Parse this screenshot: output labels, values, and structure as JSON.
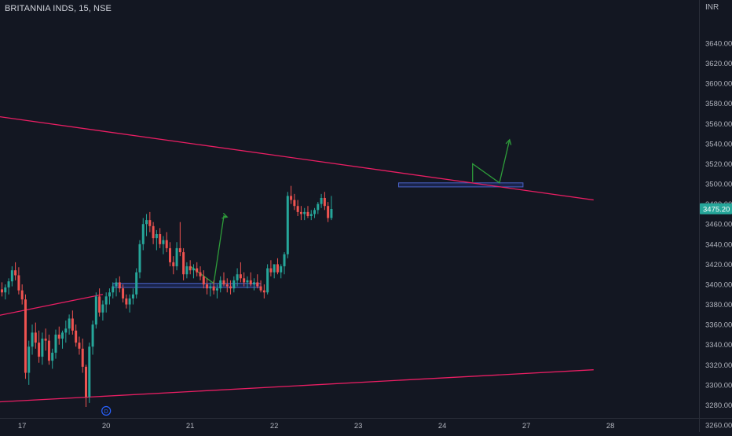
{
  "symbol": {
    "name": "BRITANNIA INDS",
    "interval": "15",
    "exchange": "NSE",
    "title": "BRITANNIA INDS, 15, NSE"
  },
  "currency": "INR",
  "last_price": "3475.20",
  "dividend_marker": "D",
  "colors": {
    "background": "#131722",
    "up": "#26a69a",
    "down": "#ef5350",
    "trendline": "#e91e63",
    "zone_fill": "#1e2a5a",
    "zone_border": "#4a63c8",
    "projection": "#2e9d3a",
    "axis_text": "#b2b5be",
    "price_badge": "#26a69a"
  },
  "chart_data": {
    "type": "candlestick",
    "ylim": [
      3253,
      3683
    ],
    "y_ticks": [
      3260,
      3280,
      3300,
      3320,
      3340,
      3360,
      3380,
      3400,
      3420,
      3440,
      3460,
      3480,
      3500,
      3520,
      3540,
      3560,
      3580,
      3600,
      3620,
      3640
    ],
    "x_ticks": [
      {
        "label": "17",
        "t": 6
      },
      {
        "label": "20",
        "t": 31
      },
      {
        "label": "21",
        "t": 56
      },
      {
        "label": "22",
        "t": 81
      },
      {
        "label": "23",
        "t": 106
      },
      {
        "label": "24",
        "t": 131
      },
      {
        "label": "27",
        "t": 156
      },
      {
        "label": "28",
        "t": 181
      }
    ],
    "candles": [
      [
        3395,
        3402,
        3388,
        3392
      ],
      [
        3392,
        3400,
        3385,
        3397
      ],
      [
        3397,
        3406,
        3390,
        3403
      ],
      [
        3403,
        3418,
        3398,
        3414
      ],
      [
        3414,
        3422,
        3404,
        3409
      ],
      [
        3409,
        3417,
        3390,
        3394
      ],
      [
        3394,
        3400,
        3380,
        3385
      ],
      [
        3385,
        3390,
        3306,
        3312
      ],
      [
        3312,
        3344,
        3300,
        3338
      ],
      [
        3338,
        3360,
        3330,
        3352
      ],
      [
        3352,
        3362,
        3336,
        3342
      ],
      [
        3342,
        3354,
        3322,
        3328
      ],
      [
        3328,
        3352,
        3320,
        3346
      ],
      [
        3346,
        3356,
        3334,
        3344
      ],
      [
        3344,
        3350,
        3320,
        3324
      ],
      [
        3324,
        3336,
        3316,
        3332
      ],
      [
        3332,
        3355,
        3326,
        3350
      ],
      [
        3350,
        3358,
        3340,
        3346
      ],
      [
        3346,
        3354,
        3336,
        3352
      ],
      [
        3352,
        3364,
        3342,
        3356
      ],
      [
        3356,
        3370,
        3350,
        3366
      ],
      [
        3366,
        3374,
        3350,
        3354
      ],
      [
        3354,
        3360,
        3338,
        3342
      ],
      [
        3342,
        3348,
        3330,
        3336
      ],
      [
        3336,
        3346,
        3312,
        3318
      ],
      [
        3318,
        3320,
        3278,
        3288
      ],
      [
        3288,
        3342,
        3282,
        3338
      ],
      [
        3338,
        3364,
        3330,
        3360
      ],
      [
        3360,
        3392,
        3356,
        3388
      ],
      [
        3388,
        3396,
        3368,
        3372
      ],
      [
        3372,
        3384,
        3364,
        3380
      ],
      [
        3380,
        3392,
        3372,
        3388
      ],
      [
        3388,
        3396,
        3380,
        3392
      ],
      [
        3392,
        3402,
        3386,
        3398
      ],
      [
        3398,
        3406,
        3388,
        3402
      ],
      [
        3402,
        3408,
        3392,
        3396
      ],
      [
        3396,
        3400,
        3382,
        3386
      ],
      [
        3386,
        3390,
        3376,
        3380
      ],
      [
        3380,
        3390,
        3372,
        3386
      ],
      [
        3386,
        3396,
        3380,
        3390
      ],
      [
        3390,
        3416,
        3386,
        3412
      ],
      [
        3412,
        3444,
        3406,
        3440
      ],
      [
        3440,
        3466,
        3434,
        3460
      ],
      [
        3460,
        3470,
        3448,
        3464
      ],
      [
        3464,
        3472,
        3452,
        3458
      ],
      [
        3458,
        3462,
        3440,
        3446
      ],
      [
        3446,
        3454,
        3434,
        3450
      ],
      [
        3450,
        3456,
        3436,
        3440
      ],
      [
        3440,
        3448,
        3430,
        3444
      ],
      [
        3444,
        3452,
        3432,
        3436
      ],
      [
        3436,
        3442,
        3418,
        3422
      ],
      [
        3422,
        3428,
        3410,
        3418
      ],
      [
        3418,
        3442,
        3414,
        3436
      ],
      [
        3436,
        3462,
        3428,
        3432
      ],
      [
        3432,
        3436,
        3404,
        3410
      ],
      [
        3410,
        3422,
        3406,
        3418
      ],
      [
        3418,
        3424,
        3410,
        3414
      ],
      [
        3414,
        3420,
        3406,
        3416
      ],
      [
        3416,
        3422,
        3408,
        3412
      ],
      [
        3412,
        3418,
        3404,
        3408
      ],
      [
        3408,
        3414,
        3396,
        3400
      ],
      [
        3400,
        3406,
        3390,
        3396
      ],
      [
        3396,
        3402,
        3388,
        3398
      ],
      [
        3398,
        3404,
        3390,
        3394
      ],
      [
        3394,
        3400,
        3386,
        3396
      ],
      [
        3396,
        3408,
        3392,
        3404
      ],
      [
        3404,
        3412,
        3398,
        3400
      ],
      [
        3400,
        3406,
        3392,
        3398
      ],
      [
        3398,
        3404,
        3390,
        3396
      ],
      [
        3396,
        3408,
        3392,
        3404
      ],
      [
        3404,
        3416,
        3398,
        3410
      ],
      [
        3410,
        3422,
        3402,
        3406
      ],
      [
        3406,
        3412,
        3398,
        3402
      ],
      [
        3402,
        3408,
        3396,
        3404
      ],
      [
        3404,
        3412,
        3398,
        3400
      ],
      [
        3400,
        3406,
        3394,
        3402
      ],
      [
        3402,
        3410,
        3396,
        3398
      ],
      [
        3398,
        3404,
        3392,
        3394
      ],
      [
        3394,
        3400,
        3386,
        3392
      ],
      [
        3392,
        3420,
        3390,
        3416
      ],
      [
        3416,
        3424,
        3408,
        3412
      ],
      [
        3412,
        3418,
        3406,
        3420
      ],
      [
        3420,
        3426,
        3410,
        3412
      ],
      [
        3412,
        3420,
        3406,
        3418
      ],
      [
        3418,
        3432,
        3410,
        3430
      ],
      [
        3430,
        3492,
        3426,
        3488
      ],
      [
        3488,
        3498,
        3480,
        3484
      ],
      [
        3484,
        3490,
        3474,
        3478
      ],
      [
        3478,
        3484,
        3468,
        3472
      ],
      [
        3472,
        3478,
        3464,
        3470
      ],
      [
        3470,
        3476,
        3464,
        3472
      ],
      [
        3472,
        3478,
        3466,
        3468
      ],
      [
        3468,
        3474,
        3464,
        3470
      ],
      [
        3470,
        3476,
        3466,
        3474
      ],
      [
        3474,
        3482,
        3470,
        3480
      ],
      [
        3480,
        3490,
        3476,
        3486
      ],
      [
        3486,
        3492,
        3474,
        3478
      ],
      [
        3478,
        3482,
        3462,
        3466
      ],
      [
        3466,
        3488,
        3464,
        3475
      ]
    ],
    "trendlines": [
      {
        "name": "upper-resistance",
        "points": [
          [
            -1,
            3567
          ],
          [
            176,
            3484
          ]
        ]
      },
      {
        "name": "lower-support",
        "points": [
          [
            -1,
            3283
          ],
          [
            176,
            3315
          ]
        ]
      },
      {
        "name": "short-support",
        "points": [
          [
            -1,
            3369
          ],
          [
            30,
            3390
          ]
        ]
      }
    ],
    "zones": [
      {
        "name": "breakout-zone-20-22",
        "t0": 33,
        "t1": 77,
        "p0": 3397,
        "p1": 3401
      },
      {
        "name": "resistance-zone-24-27",
        "t0": 118,
        "t1": 155,
        "p0": 3497,
        "p1": 3501
      }
    ],
    "projections": [
      {
        "name": "projection-21",
        "points": [
          [
            56,
            3418
          ],
          [
            63,
            3401
          ],
          [
            66,
            3468
          ],
          [
            67,
            3467
          ]
        ]
      },
      {
        "name": "projection-27",
        "points": [
          [
            140,
            3502
          ],
          [
            140,
            3520
          ],
          [
            148,
            3501
          ],
          [
            151,
            3544
          ]
        ]
      }
    ]
  }
}
